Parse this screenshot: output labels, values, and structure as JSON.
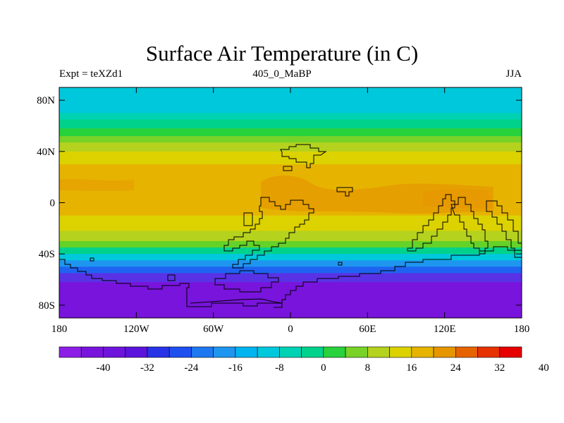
{
  "title": "Surface Air Temperature (in C)",
  "subtitle_left": "Expt = teXZd1",
  "subtitle_center": "405_0_MaBP",
  "subtitle_right": "JJA",
  "map": {
    "lat_range": [
      -90,
      90
    ],
    "lon_range": [
      -180,
      180
    ],
    "y_ticks": [
      {
        "value": 80,
        "label": "80N"
      },
      {
        "value": 40,
        "label": "40N"
      },
      {
        "value": 0,
        "label": "0"
      },
      {
        "value": -40,
        "label": "40S"
      },
      {
        "value": -80,
        "label": "80S"
      }
    ],
    "x_ticks": [
      {
        "value": -180,
        "label": "180"
      },
      {
        "value": -120,
        "label": "120W"
      },
      {
        "value": -60,
        "label": "60W"
      },
      {
        "value": 0,
        "label": "0"
      },
      {
        "value": 60,
        "label": "60E"
      },
      {
        "value": 120,
        "label": "120E"
      },
      {
        "value": 180,
        "label": "180"
      }
    ],
    "temperature_bands": [
      {
        "lat_from": 90,
        "lat_to": 70,
        "color": "#00c8dc"
      },
      {
        "lat_from": 70,
        "lat_to": 65,
        "color": "#00d2b4"
      },
      {
        "lat_from": 65,
        "lat_to": 58,
        "color": "#00d28c"
      },
      {
        "lat_from": 58,
        "lat_to": 52,
        "color": "#28d23c"
      },
      {
        "lat_from": 52,
        "lat_to": 47,
        "color": "#78d228"
      },
      {
        "lat_from": 47,
        "lat_to": 40,
        "color": "#b4d21e"
      },
      {
        "lat_from": 40,
        "lat_to": 30,
        "color": "#dcd200"
      },
      {
        "lat_from": 30,
        "lat_to": -10,
        "color": "#e6b400"
      },
      {
        "lat_from": -10,
        "lat_to": -22,
        "color": "#dcd200"
      },
      {
        "lat_from": -22,
        "lat_to": -30,
        "color": "#b4d21e"
      },
      {
        "lat_from": -30,
        "lat_to": -35,
        "color": "#64d228"
      },
      {
        "lat_from": -35,
        "lat_to": -40,
        "color": "#00d28c"
      },
      {
        "lat_from": -40,
        "lat_to": -45,
        "color": "#00c8dc"
      },
      {
        "lat_from": -45,
        "lat_to": -50,
        "color": "#1e96f0"
      },
      {
        "lat_from": -50,
        "lat_to": -55,
        "color": "#1e64f0"
      },
      {
        "lat_from": -55,
        "lat_to": -62,
        "color": "#5a32e6"
      },
      {
        "lat_from": -62,
        "lat_to": -90,
        "color": "#7814dc"
      }
    ]
  },
  "colorbar": {
    "colors": [
      "#8c1ee6",
      "#7814dc",
      "#6e14dc",
      "#5a14dc",
      "#2832e6",
      "#1e50f0",
      "#1e78f0",
      "#1e96f0",
      "#00b4f0",
      "#00c8dc",
      "#00d2b4",
      "#00d28c",
      "#28d23c",
      "#78d228",
      "#b4d21e",
      "#dcd200",
      "#e6b400",
      "#e69600",
      "#e66400",
      "#e63200",
      "#e60000"
    ],
    "labels": [
      "-40",
      "-32",
      "-24",
      "-16",
      "-8",
      "0",
      "8",
      "16",
      "24",
      "32",
      "40"
    ]
  },
  "colors": {
    "coastline": "#000000",
    "frame": "#000000"
  }
}
